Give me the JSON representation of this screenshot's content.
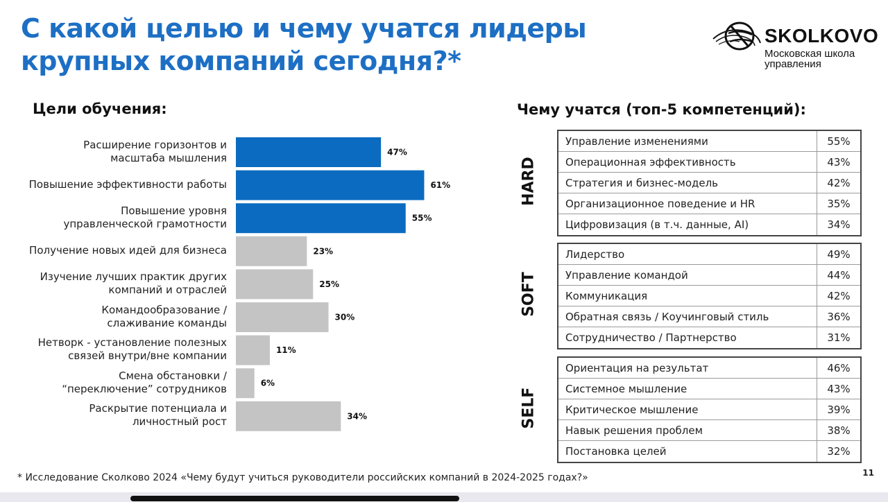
{
  "title": {
    "line1": "С какой целью и чему учатся лидеры",
    "line2": "крупных компаний сегодня?*"
  },
  "logo": {
    "name": "SKOLKOVO",
    "subtitle_line1": "Московская школа",
    "subtitle_line2": "управления",
    "icon": "globe-swirl-icon"
  },
  "left_heading": "Цели обучения:",
  "right_heading": "Чему учатся (топ-5 компетенций):",
  "colors": {
    "title": "#1d6fc4",
    "bar_highlight": "#0b6bc0",
    "bar_default": "#c4c4c4"
  },
  "chart_data": {
    "type": "bar",
    "orientation": "horizontal",
    "categories": [
      [
        "Расширение горизонтов и",
        "масштаба мышления"
      ],
      [
        "Повышение эффективности работы"
      ],
      [
        "Повышение уровня",
        "управленческой грамотности"
      ],
      [
        "Получение новых идей для бизнеса"
      ],
      [
        "Изучение лучших практик других",
        "компаний и отраслей"
      ],
      [
        "Командообразование /",
        "слаживание команды"
      ],
      [
        "Нетворк - установление полезных",
        "связей внутри/вне компании"
      ],
      [
        "Смена обстановки /",
        "“переключение” сотрудников"
      ],
      [
        "Раскрытие потенциала и",
        "личностный рост"
      ]
    ],
    "values": [
      47,
      61,
      55,
      23,
      25,
      30,
      11,
      6,
      34
    ],
    "value_labels": [
      "47%",
      "61%",
      "55%",
      "23%",
      "25%",
      "30%",
      "11%",
      "6%",
      "34%"
    ],
    "highlighted": [
      true,
      true,
      true,
      false,
      false,
      false,
      false,
      false,
      false
    ],
    "xlim": [
      0,
      100
    ]
  },
  "competency_groups": [
    {
      "label": "HARD",
      "rows": [
        {
          "name": "Управление изменениями",
          "value": "55%"
        },
        {
          "name": "Операционная эффективность",
          "value": "43%"
        },
        {
          "name": "Стратегия и бизнес-модель",
          "value": "42%"
        },
        {
          "name": "Организационное поведение и HR",
          "value": "35%"
        },
        {
          "name": "Цифровизация (в т.ч. данные, AI)",
          "value": "34%"
        }
      ]
    },
    {
      "label": "SOFT",
      "rows": [
        {
          "name": "Лидерство",
          "value": "49%"
        },
        {
          "name": "Управление командой",
          "value": "44%"
        },
        {
          "name": "Коммуникация",
          "value": "42%"
        },
        {
          "name": "Обратная связь / Коучинговый стиль",
          "value": "36%"
        },
        {
          "name": "Сотрудничество / Партнерство",
          "value": "31%"
        }
      ]
    },
    {
      "label": "SELF",
      "rows": [
        {
          "name": "Ориентация на результат",
          "value": "46%"
        },
        {
          "name": "Системное мышление",
          "value": "43%"
        },
        {
          "name": "Критическое мышление",
          "value": "39%"
        },
        {
          "name": "Навык решения проблем",
          "value": "38%"
        },
        {
          "name": "Постановка целей",
          "value": "32%"
        }
      ]
    }
  ],
  "footnote": "* Исследование Сколково 2024 «Чему будут учиться руководители российских компаний в 2024-2025 годах?»",
  "page_number": "11"
}
